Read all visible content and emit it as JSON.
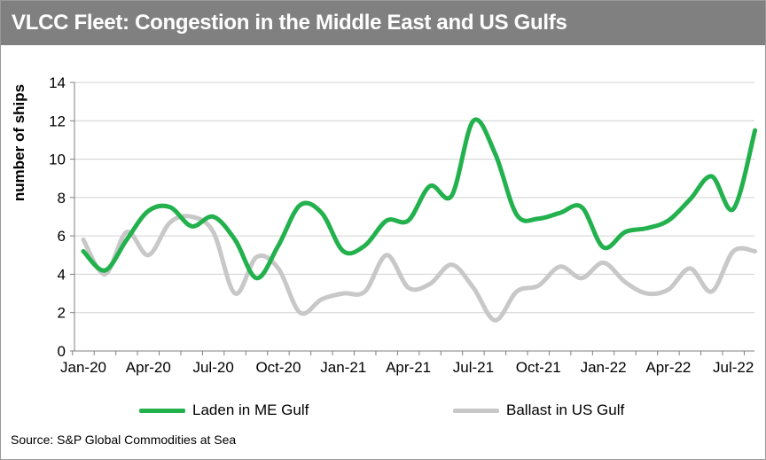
{
  "title": "VLCC Fleet: Congestion in the Middle East and US Gulfs",
  "source": "Source: S&P Global Commodities at Sea",
  "colors": {
    "title_bar": "#808080",
    "laden": "#22b14c",
    "ballast": "#c8c8c8",
    "grid": "#d0d0d0",
    "axis": "#7f7f7f"
  },
  "chart_data": {
    "type": "line",
    "title": "VLCC Fleet: Congestion in the Middle East and US Gulfs",
    "xlabel": "",
    "ylabel": "number of ships",
    "ylim": [
      0,
      14
    ],
    "yticks": [
      0,
      2,
      4,
      6,
      8,
      10,
      12,
      14
    ],
    "x": [
      "2020-01",
      "2020-02",
      "2020-03",
      "2020-04",
      "2020-05",
      "2020-06",
      "2020-07",
      "2020-08",
      "2020-09",
      "2020-10",
      "2020-11",
      "2020-12",
      "2021-01",
      "2021-02",
      "2021-03",
      "2021-04",
      "2021-05",
      "2021-06",
      "2021-07",
      "2021-08",
      "2021-09",
      "2021-10",
      "2021-11",
      "2021-12",
      "2022-01",
      "2022-02",
      "2022-03",
      "2022-04",
      "2022-05",
      "2022-06",
      "2022-07",
      "2022-08"
    ],
    "xticks": [
      "Jan-20",
      "Apr-20",
      "Jul-20",
      "Oct-20",
      "Jan-21",
      "Apr-21",
      "Jul-21",
      "Oct-21",
      "Jan-22",
      "Apr-22",
      "Jul-22"
    ],
    "grid": "horizontal",
    "legend_position": "bottom",
    "series": [
      {
        "name": "Laden in ME Gulf",
        "color": "#22b14c",
        "values": [
          5.2,
          4.2,
          5.8,
          7.3,
          7.5,
          6.5,
          7.0,
          5.8,
          3.8,
          5.5,
          7.6,
          7.2,
          5.2,
          5.5,
          6.8,
          6.8,
          8.6,
          8.1,
          12.0,
          10.3,
          7.1,
          6.9,
          7.2,
          7.5,
          5.4,
          6.2,
          6.4,
          6.8,
          7.9,
          9.1,
          7.4,
          11.5
        ]
      },
      {
        "name": "Ballast in US Gulf",
        "color": "#c8c8c8",
        "values": [
          5.8,
          4.0,
          6.2,
          5.0,
          6.7,
          7.0,
          6.2,
          3.0,
          4.9,
          4.3,
          2.0,
          2.7,
          3.0,
          3.1,
          5.0,
          3.3,
          3.5,
          4.5,
          3.3,
          1.6,
          3.1,
          3.4,
          4.4,
          3.8,
          4.6,
          3.6,
          3.0,
          3.2,
          4.3,
          3.1,
          5.2,
          5.2
        ]
      }
    ]
  }
}
